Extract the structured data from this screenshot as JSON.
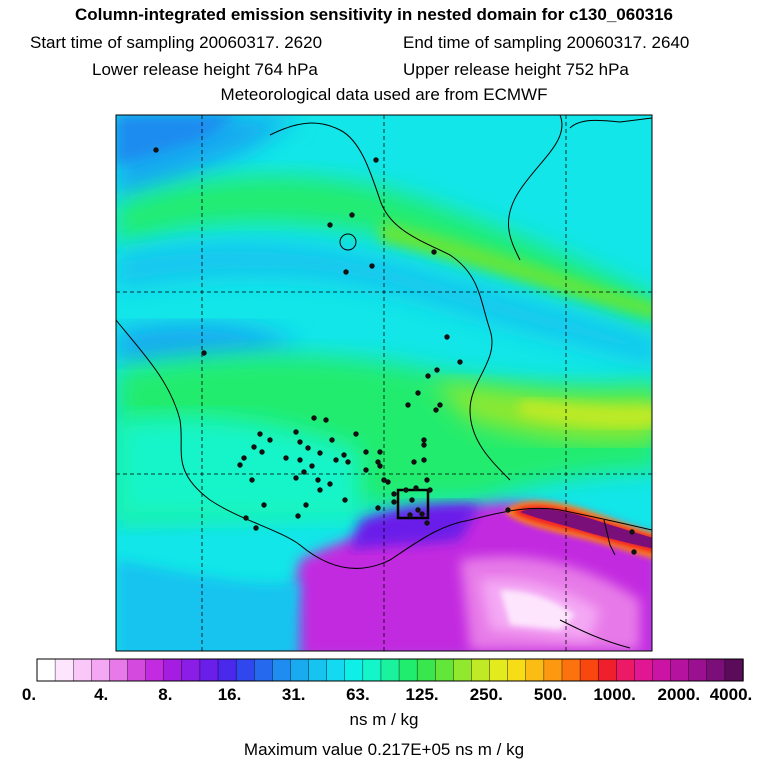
{
  "header": {
    "title": "Column-integrated emission sensitivity in nested domain for c130_060316",
    "start_sampling": "Start time of sampling 20060317.  2620",
    "end_sampling": "End time of sampling 20060317.  2640",
    "lower_release": "Lower release height  764 hPa",
    "upper_release": "Upper release height  752 hPa",
    "met_data": "Meteorological data used are from ECMWF"
  },
  "colorbar": {
    "ticks": [
      "0.",
      "4.",
      "8.",
      "16.",
      "31.",
      "63.",
      "125.",
      "250.",
      "500.",
      "1000.",
      "2000.",
      "4000."
    ],
    "colors": [
      "#ffffff",
      "#fde6fd",
      "#f9c8f9",
      "#f4a8f4",
      "#e77ae8",
      "#d44ade",
      "#c22be0",
      "#a51de0",
      "#8a1de6",
      "#6a1ee9",
      "#4a28ec",
      "#3147ee",
      "#2569ef",
      "#1f8cf0",
      "#19aaf0",
      "#16c4ef",
      "#13daf0",
      "#10eee8",
      "#14f5c9",
      "#1af29e",
      "#20ec6e",
      "#39e64e",
      "#63e63a",
      "#92e82e",
      "#bfea25",
      "#e3ea1e",
      "#f7dc18",
      "#fbbd14",
      "#fc9911",
      "#fb720f",
      "#f8470f",
      "#f01f2c",
      "#ec1a66",
      "#e01692",
      "#cc14a4",
      "#b612a0",
      "#9a1090",
      "#7a0f7a",
      "#5a0c5a"
    ],
    "units": "ns m / kg",
    "max_value": "Maximum value  0.217E+05 ns m / kg"
  },
  "map": {
    "background_level": "63.",
    "marker_count": 84,
    "box_marker": "receptor-box"
  }
}
